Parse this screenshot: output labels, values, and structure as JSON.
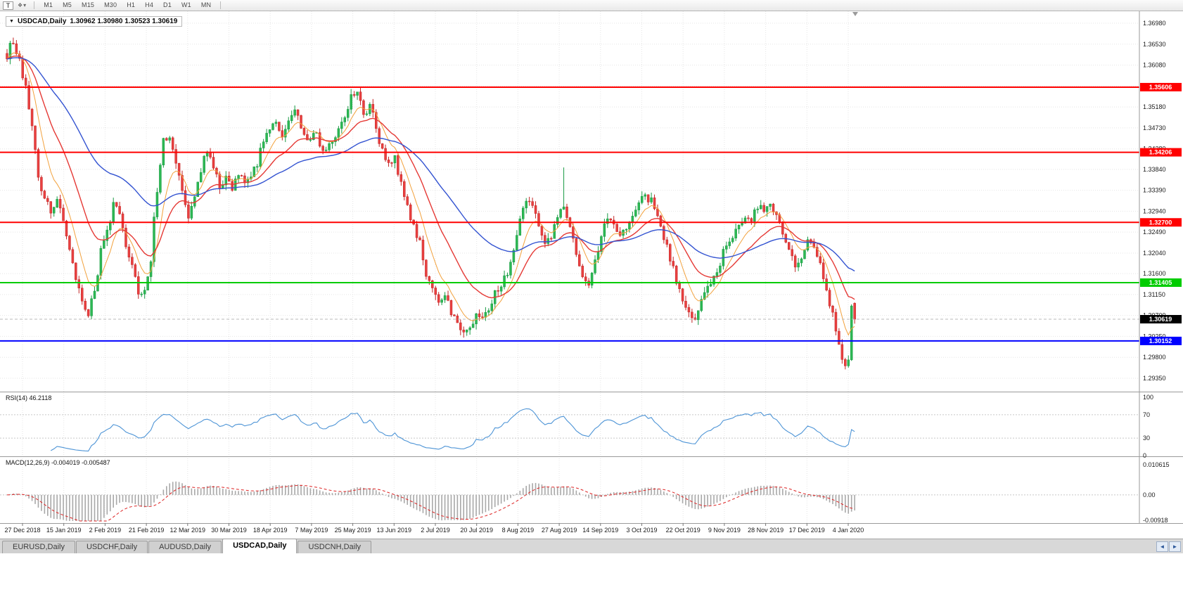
{
  "toolbar": {
    "tool_button": "T",
    "timeframes": [
      "M1",
      "M5",
      "M15",
      "M30",
      "H1",
      "H4",
      "D1",
      "W1",
      "MN"
    ]
  },
  "chart": {
    "title_symbol": "USDCAD,Daily",
    "title_ohlc": "1.30962 1.30980 1.30523 1.30619"
  },
  "chart_data": {
    "type": "candlestick",
    "symbol": "USDCAD",
    "timeframe": "Daily",
    "last_bar": {
      "open": 1.30962,
      "high": 1.3098,
      "low": 1.30523,
      "close": 1.30619
    },
    "bars_count": 272,
    "x_labels": [
      "27 Dec 2018",
      "15 Jan 2019",
      "2 Feb 2019",
      "21 Feb 2019",
      "12 Mar 2019",
      "30 Mar 2019",
      "18 Apr 2019",
      "7 May 2019",
      "25 May 2019",
      "13 Jun 2019",
      "2 Jul 2019",
      "20 Jul 2019",
      "8 Aug 2019",
      "27 Aug 2019",
      "14 Sep 2019",
      "3 Oct 2019",
      "22 Oct 2019",
      "9 Nov 2019",
      "28 Nov 2019",
      "17 Dec 2019",
      "4 Jan 2020"
    ],
    "y_ticks": [
      "1.36980",
      "1.36530",
      "1.36080",
      "1.35630",
      "1.35180",
      "1.34730",
      "1.34280",
      "1.33840",
      "1.33390",
      "1.32940",
      "1.32490",
      "1.32040",
      "1.31600",
      "1.31150",
      "1.30700",
      "1.30250",
      "1.29800",
      "1.29350"
    ],
    "y_range": {
      "min": 1.2935,
      "max": 1.3698
    },
    "price_path_anchors": [
      [
        0,
        1.3635
      ],
      [
        2,
        1.3655
      ],
      [
        4,
        1.3618
      ],
      [
        6,
        1.356
      ],
      [
        8,
        1.348
      ],
      [
        10,
        1.3365
      ],
      [
        12,
        1.333
      ],
      [
        14,
        1.329
      ],
      [
        16,
        1.331
      ],
      [
        18,
        1.3275
      ],
      [
        20,
        1.322
      ],
      [
        22,
        1.315
      ],
      [
        24,
        1.3095
      ],
      [
        26,
        1.308
      ],
      [
        28,
        1.3125
      ],
      [
        30,
        1.3205
      ],
      [
        32,
        1.3245
      ],
      [
        34,
        1.3305
      ],
      [
        36,
        1.328
      ],
      [
        38,
        1.322
      ],
      [
        40,
        1.3175
      ],
      [
        42,
        1.311
      ],
      [
        44,
        1.312
      ],
      [
        46,
        1.32
      ],
      [
        48,
        1.334
      ],
      [
        50,
        1.344
      ],
      [
        52,
        1.3445
      ],
      [
        54,
        1.3395
      ],
      [
        56,
        1.3345
      ],
      [
        58,
        1.327
      ],
      [
        60,
        1.332
      ],
      [
        62,
        1.338
      ],
      [
        64,
        1.3425
      ],
      [
        66,
        1.3395
      ],
      [
        68,
        1.3355
      ],
      [
        70,
        1.337
      ],
      [
        72,
        1.3345
      ],
      [
        74,
        1.3375
      ],
      [
        76,
        1.335
      ],
      [
        78,
        1.337
      ],
      [
        80,
        1.34
      ],
      [
        82,
        1.344
      ],
      [
        84,
        1.3475
      ],
      [
        86,
        1.348
      ],
      [
        88,
        1.3455
      ],
      [
        90,
        1.348
      ],
      [
        92,
        1.351
      ],
      [
        94,
        1.3475
      ],
      [
        96,
        1.344
      ],
      [
        98,
        1.3465
      ],
      [
        100,
        1.344
      ],
      [
        102,
        1.3415
      ],
      [
        104,
        1.344
      ],
      [
        106,
        1.347
      ],
      [
        108,
        1.349
      ],
      [
        110,
        1.354
      ],
      [
        112,
        1.355
      ],
      [
        114,
        1.35
      ],
      [
        116,
        1.3525
      ],
      [
        118,
        1.3465
      ],
      [
        120,
        1.342
      ],
      [
        122,
        1.3385
      ],
      [
        124,
        1.3415
      ],
      [
        126,
        1.3355
      ],
      [
        128,
        1.33
      ],
      [
        130,
        1.3265
      ],
      [
        132,
        1.3225
      ],
      [
        134,
        1.316
      ],
      [
        136,
        1.313
      ],
      [
        138,
        1.31
      ],
      [
        140,
        1.311
      ],
      [
        142,
        1.308
      ],
      [
        144,
        1.3055
      ],
      [
        146,
        1.3035
      ],
      [
        148,
        1.3045
      ],
      [
        150,
        1.3075
      ],
      [
        152,
        1.306
      ],
      [
        154,
        1.3085
      ],
      [
        156,
        1.3115
      ],
      [
        158,
        1.314
      ],
      [
        160,
        1.3165
      ],
      [
        162,
        1.32
      ],
      [
        164,
        1.327
      ],
      [
        166,
        1.332
      ],
      [
        168,
        1.331
      ],
      [
        170,
        1.326
      ],
      [
        172,
        1.3225
      ],
      [
        174,
        1.324
      ],
      [
        176,
        1.3285
      ],
      [
        178,
        1.33
      ],
      [
        180,
        1.326
      ],
      [
        182,
        1.3205
      ],
      [
        184,
        1.3145
      ],
      [
        186,
        1.314
      ],
      [
        188,
        1.319
      ],
      [
        190,
        1.324
      ],
      [
        192,
        1.328
      ],
      [
        194,
        1.327
      ],
      [
        196,
        1.324
      ],
      [
        198,
        1.325
      ],
      [
        200,
        1.328
      ],
      [
        202,
        1.3305
      ],
      [
        204,
        1.3325
      ],
      [
        206,
        1.332
      ],
      [
        208,
        1.328
      ],
      [
        210,
        1.324
      ],
      [
        212,
        1.3195
      ],
      [
        214,
        1.315
      ],
      [
        216,
        1.3105
      ],
      [
        218,
        1.307
      ],
      [
        220,
        1.306
      ],
      [
        222,
        1.31
      ],
      [
        224,
        1.3135
      ],
      [
        226,
        1.3155
      ],
      [
        228,
        1.3185
      ],
      [
        230,
        1.3215
      ],
      [
        232,
        1.3245
      ],
      [
        234,
        1.327
      ],
      [
        236,
        1.3285
      ],
      [
        238,
        1.328
      ],
      [
        240,
        1.3295
      ],
      [
        242,
        1.329
      ],
      [
        244,
        1.33
      ],
      [
        246,
        1.3285
      ],
      [
        248,
        1.325
      ],
      [
        250,
        1.321
      ],
      [
        252,
        1.318
      ],
      [
        254,
        1.32
      ],
      [
        256,
        1.3225
      ],
      [
        258,
        1.321
      ],
      [
        260,
        1.317
      ],
      [
        262,
        1.312
      ],
      [
        264,
        1.307
      ],
      [
        266,
        1.3
      ],
      [
        267,
        1.297
      ],
      [
        268,
        1.2955
      ],
      [
        269,
        1.2975
      ],
      [
        270,
        1.309
      ],
      [
        271,
        1.3096
      ]
    ],
    "spikes": [
      {
        "bar": 178,
        "high": 1.3388
      }
    ],
    "horizontal_lines": [
      {
        "price": 1.35606,
        "label": "1.35606",
        "color": "#ff0000",
        "width": 2
      },
      {
        "price": 1.34206,
        "label": "1.34206",
        "color": "#ff0000",
        "width": 2
      },
      {
        "price": 1.327,
        "label": "1.32700",
        "color": "#ff0000",
        "width": 2
      },
      {
        "price": 1.31405,
        "label": "1.31405",
        "color": "#00cc00",
        "width": 2
      },
      {
        "price": 1.30152,
        "label": "1.30152",
        "color": "#0000ff",
        "width": 2
      }
    ],
    "current_price": {
      "value": 1.30619,
      "label": "1.30619",
      "box_color": "#000000"
    },
    "moving_averages": [
      {
        "period": 8,
        "method": "ema",
        "color": "#f2a13c"
      },
      {
        "period": 21,
        "method": "ema",
        "color": "#e53935"
      },
      {
        "period": 55,
        "method": "ema",
        "color": "#3353d1"
      }
    ],
    "candle_colors": {
      "up": "#2db853",
      "up_border": "#189a44",
      "down": "#e94040",
      "down_border": "#c22525"
    },
    "indicators": {
      "rsi": {
        "label": "RSI(14)",
        "value": "46.2118",
        "axis_labels": [
          100,
          70,
          30,
          0
        ],
        "dotted_levels": [
          70,
          30
        ],
        "color": "#4d94d6"
      },
      "macd": {
        "label": "MACD(12,26,9)",
        "value": "-0.004019 -0.005487",
        "axis_top": "0.010615",
        "axis_mid": "0.00",
        "axis_bottom": "-0.00918",
        "histogram_color": "#a8a8a8",
        "signal_color": "#dd2222"
      }
    }
  },
  "tabs": {
    "items": [
      {
        "label": "EURUSD,Daily",
        "active": false
      },
      {
        "label": "USDCHF,Daily",
        "active": false
      },
      {
        "label": "AUDUSD,Daily",
        "active": false
      },
      {
        "label": "USDCAD,Daily",
        "active": true
      },
      {
        "label": "USDCNH,Daily",
        "active": false
      }
    ]
  }
}
